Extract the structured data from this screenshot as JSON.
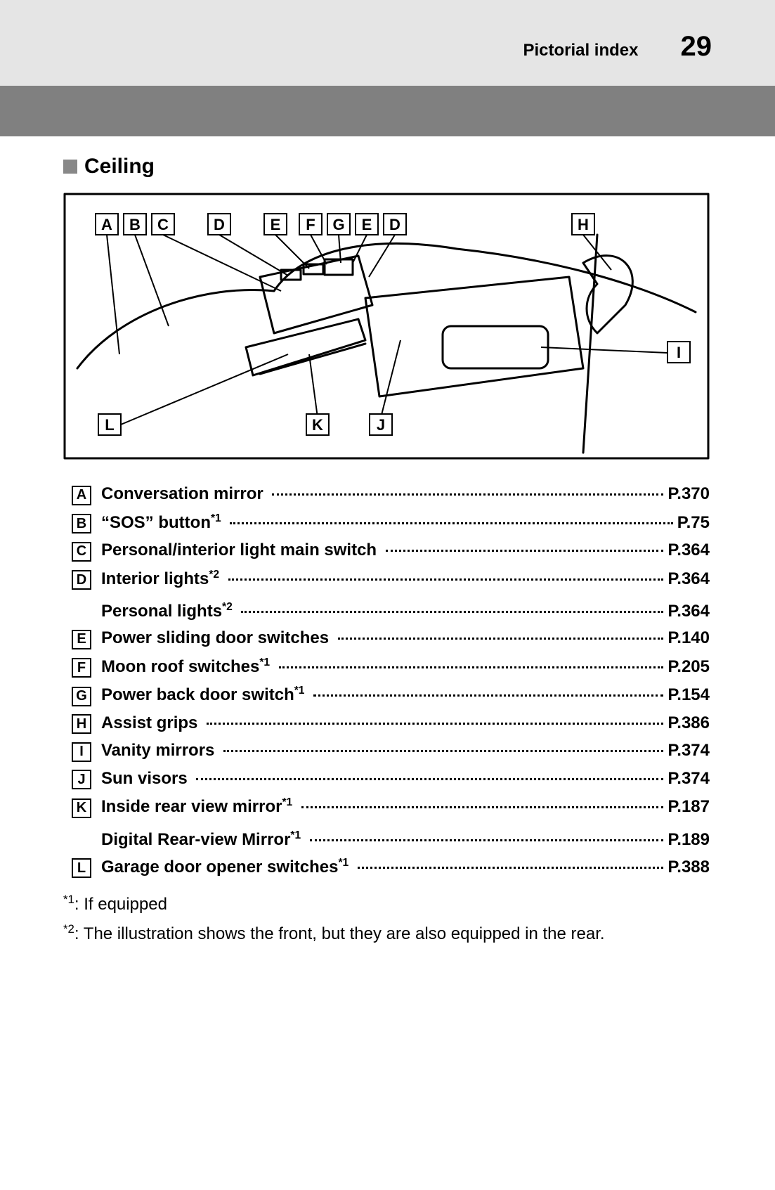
{
  "header": {
    "section": "Pictorial index",
    "page_number": "29"
  },
  "section_title": "Ceiling",
  "diagram": {
    "border_color": "#000000",
    "fill": "#ffffff",
    "grey_fill": "#d9d9d9",
    "top_labels": [
      "A",
      "B",
      "C",
      "D",
      "E",
      "F",
      "G",
      "E",
      "D"
    ],
    "right_top_label": "H",
    "right_mid_label": "I",
    "bottom_left_label": "L",
    "bottom_mid_labels": [
      "K",
      "J"
    ]
  },
  "items": [
    {
      "letter": "A",
      "label": "Conversation mirror",
      "sup": "",
      "page": "P.370"
    },
    {
      "letter": "B",
      "label": "“SOS” button",
      "sup": "*1",
      "page": "P.75"
    },
    {
      "letter": "C",
      "label": "Personal/interior light main switch",
      "sup": "",
      "page": "P.364"
    },
    {
      "letter": "D",
      "label": "Interior lights",
      "sup": "*2",
      "page": "P.364"
    },
    {
      "letter": "",
      "label": "Personal lights",
      "sup": "*2",
      "page": "P.364"
    },
    {
      "letter": "E",
      "label": "Power sliding door switches",
      "sup": "",
      "page": "P.140"
    },
    {
      "letter": "F",
      "label": "Moon roof switches",
      "sup": "*1",
      "page": "P.205"
    },
    {
      "letter": "G",
      "label": "Power back door switch",
      "sup": "*1",
      "page": "P.154"
    },
    {
      "letter": "H",
      "label": "Assist grips",
      "sup": "",
      "page": "P.386"
    },
    {
      "letter": "I",
      "label": "Vanity mirrors",
      "sup": "",
      "page": "P.374"
    },
    {
      "letter": "J",
      "label": "Sun visors",
      "sup": "",
      "page": "P.374"
    },
    {
      "letter": "K",
      "label": "Inside rear view mirror",
      "sup": "*1",
      "page": "P.187"
    },
    {
      "letter": "",
      "label": "Digital Rear-view Mirror",
      "sup": "*1",
      "page": "P.189"
    },
    {
      "letter": "L",
      "label": "Garage door opener switches",
      "sup": "*1",
      "page": "P.388"
    }
  ],
  "footnotes": [
    {
      "mark": "*1",
      "text": ": If equipped"
    },
    {
      "mark": "*2",
      "text": ": The illustration shows the front, but they are also equipped in the rear."
    }
  ],
  "colors": {
    "top_bar": "#e5e5e5",
    "dark_band": "#808080",
    "text": "#000000"
  }
}
